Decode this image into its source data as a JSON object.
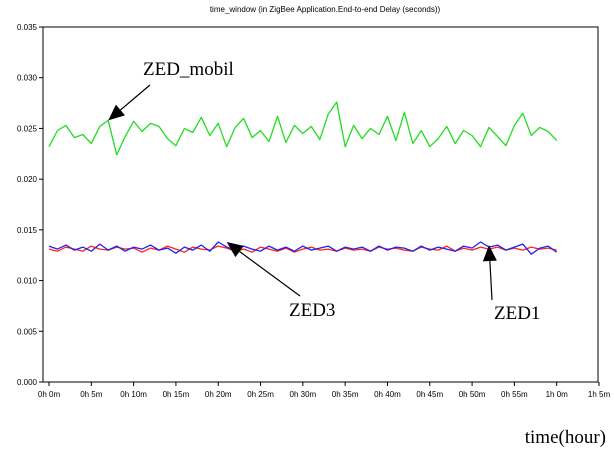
{
  "chart_data": {
    "type": "line",
    "title": "time_window (in ZigBee Application.End-to-end Delay (seconds))",
    "xlabel": "time(hour)",
    "ylabel": "",
    "xlim": [
      0,
      65
    ],
    "ylim": [
      0,
      0.035
    ],
    "x_ticks": [
      0,
      5,
      10,
      15,
      20,
      25,
      30,
      35,
      40,
      45,
      50,
      55,
      60,
      65
    ],
    "x_tick_labels": [
      "0h 0m",
      "0h 5m",
      "0h 10m",
      "0h 15m",
      "0h 20m",
      "0h 25m",
      "0h 30m",
      "0h 35m",
      "0h 40m",
      "0h 45m",
      "0h 50m",
      "0h 55m",
      "1h 0m",
      "1h 5m"
    ],
    "y_ticks": [
      0,
      0.005,
      0.01,
      0.015,
      0.02,
      0.025,
      0.03,
      0.035
    ],
    "y_tick_labels": [
      "0.000",
      "0.005",
      "0.010",
      "0.015",
      "0.020",
      "0.025",
      "0.030",
      "0.035"
    ],
    "grid": false,
    "series": [
      {
        "color": "#22dd22",
        "x": [
          0,
          1,
          2,
          3,
          4,
          5,
          6,
          7,
          8,
          9,
          10,
          11,
          12,
          13,
          14,
          15,
          16,
          17,
          18,
          19,
          20,
          21,
          22,
          23,
          24,
          25,
          26,
          27,
          28,
          29,
          30,
          31,
          32,
          33,
          34,
          35,
          36,
          37,
          38,
          39,
          40,
          41,
          42,
          43,
          44,
          45,
          46,
          47,
          48,
          49,
          50,
          51,
          52,
          53,
          54,
          55,
          56,
          57,
          58,
          59,
          60
        ],
        "values": [
          0.0232,
          0.0248,
          0.0253,
          0.0241,
          0.0244,
          0.0235,
          0.0252,
          0.0258,
          0.0224,
          0.0242,
          0.0257,
          0.0247,
          0.0255,
          0.0252,
          0.024,
          0.0233,
          0.025,
          0.0246,
          0.0261,
          0.0243,
          0.0255,
          0.0232,
          0.0251,
          0.026,
          0.0241,
          0.0248,
          0.0237,
          0.0262,
          0.0236,
          0.0253,
          0.0245,
          0.0252,
          0.0239,
          0.0264,
          0.0276,
          0.0232,
          0.0253,
          0.024,
          0.025,
          0.0244,
          0.0262,
          0.0238,
          0.0266,
          0.0235,
          0.0248,
          0.0232,
          0.024,
          0.0252,
          0.0235,
          0.0248,
          0.0243,
          0.0232,
          0.0251,
          0.0242,
          0.0233,
          0.0253,
          0.0265,
          0.0243,
          0.0251,
          0.0247,
          0.0238
        ]
      },
      {
        "color": "#ff2222",
        "x": [
          0,
          1,
          2,
          3,
          4,
          5,
          6,
          7,
          8,
          9,
          10,
          11,
          12,
          13,
          14,
          15,
          16,
          17,
          18,
          19,
          20,
          21,
          22,
          23,
          24,
          25,
          26,
          27,
          28,
          29,
          30,
          31,
          32,
          33,
          34,
          35,
          36,
          37,
          38,
          39,
          40,
          41,
          42,
          43,
          44,
          45,
          46,
          47,
          48,
          49,
          50,
          51,
          52,
          53,
          54,
          55,
          56,
          57,
          58,
          59,
          60
        ],
        "values": [
          0.0131,
          0.0129,
          0.0133,
          0.0131,
          0.0129,
          0.0134,
          0.0131,
          0.013,
          0.0133,
          0.0131,
          0.0132,
          0.0128,
          0.0132,
          0.013,
          0.0134,
          0.0131,
          0.0128,
          0.0133,
          0.0131,
          0.013,
          0.0134,
          0.0132,
          0.0129,
          0.0131,
          0.0128,
          0.0133,
          0.0131,
          0.0129,
          0.0132,
          0.0128,
          0.0131,
          0.0133,
          0.013,
          0.0131,
          0.0129,
          0.0132,
          0.013,
          0.0131,
          0.0129,
          0.0133,
          0.0131,
          0.0132,
          0.013,
          0.0129,
          0.0133,
          0.0131,
          0.013,
          0.0134,
          0.0129,
          0.0132,
          0.013,
          0.0133,
          0.0131,
          0.0133,
          0.013,
          0.0132,
          0.013,
          0.0133,
          0.0131,
          0.0132,
          0.013
        ]
      },
      {
        "color": "#2222ee",
        "x": [
          0,
          1,
          2,
          3,
          4,
          5,
          6,
          7,
          8,
          9,
          10,
          11,
          12,
          13,
          14,
          15,
          16,
          17,
          18,
          19,
          20,
          21,
          22,
          23,
          24,
          25,
          26,
          27,
          28,
          29,
          30,
          31,
          32,
          33,
          34,
          35,
          36,
          37,
          38,
          39,
          40,
          41,
          42,
          43,
          44,
          45,
          46,
          47,
          48,
          49,
          50,
          51,
          52,
          53,
          54,
          55,
          56,
          57,
          58,
          59,
          60
        ],
        "values": [
          0.0134,
          0.0131,
          0.0135,
          0.013,
          0.0133,
          0.0129,
          0.0136,
          0.013,
          0.0134,
          0.0129,
          0.0133,
          0.0131,
          0.0135,
          0.013,
          0.0132,
          0.0127,
          0.0133,
          0.013,
          0.0135,
          0.0129,
          0.0138,
          0.0133,
          0.013,
          0.0134,
          0.0131,
          0.0129,
          0.0134,
          0.013,
          0.0133,
          0.0129,
          0.0134,
          0.013,
          0.0132,
          0.0134,
          0.0129,
          0.0133,
          0.0131,
          0.0133,
          0.0129,
          0.0134,
          0.013,
          0.0133,
          0.0132,
          0.0129,
          0.0134,
          0.013,
          0.0133,
          0.0131,
          0.0129,
          0.0134,
          0.0132,
          0.0138,
          0.0133,
          0.0135,
          0.013,
          0.0133,
          0.0136,
          0.0126,
          0.0132,
          0.0134,
          0.0128
        ]
      }
    ],
    "annotations": [
      {
        "text": "ZED_mobil",
        "target_x": 7,
        "target_y": 0.0258
      },
      {
        "text": "ZED3",
        "target_x": 21,
        "target_y": 0.0138
      },
      {
        "text": "ZED1",
        "target_x": 52,
        "target_y": 0.0135
      }
    ]
  }
}
